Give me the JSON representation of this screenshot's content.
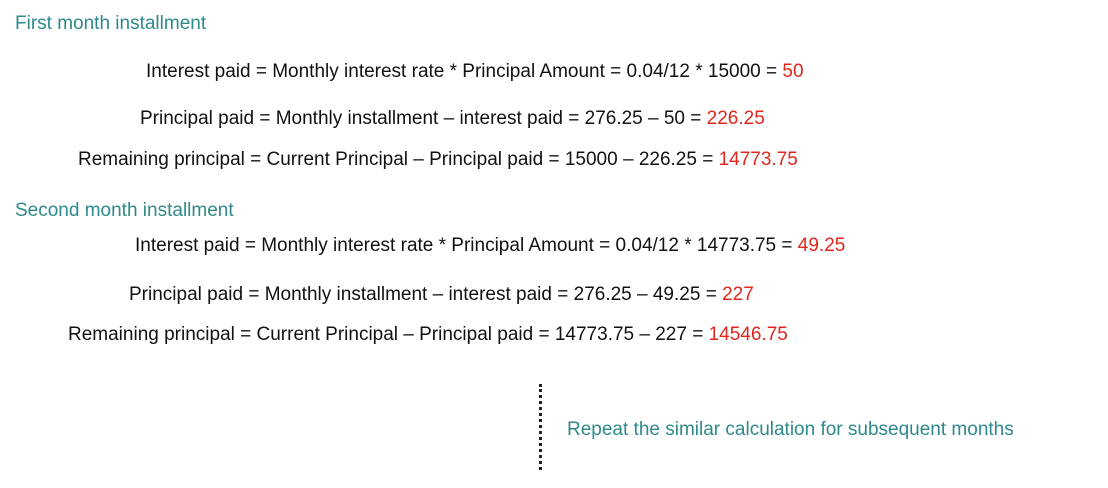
{
  "first_month": {
    "title": "First month installment",
    "interest": {
      "text": "Interest paid = Monthly interest rate * Principal Amount = 0.04/12 * 15000 = ",
      "result": "50"
    },
    "principal": {
      "text": "Principal paid = Monthly installment – interest paid = 276.25 – 50 = ",
      "result": "226.25"
    },
    "remaining": {
      "text": "Remaining principal = Current Principal – Principal paid = 15000 – 226.25 = ",
      "result": "14773.75"
    }
  },
  "second_month": {
    "title": "Second month installment",
    "interest": {
      "text": "Interest paid = Monthly interest rate * Principal Amount = 0.04/12 * 14773.75 = ",
      "result": "49.25"
    },
    "principal": {
      "text": "Principal paid = Monthly installment – interest paid = 276.25 – 49.25 = ",
      "result": "227"
    },
    "remaining": {
      "text": "Remaining principal = Current Principal – Principal paid = 14773.75 – 227 = ",
      "result": "14546.75"
    }
  },
  "note": "Repeat the similar calculation for subsequent months",
  "colors": {
    "heading": "#2e8a8a",
    "result": "#e0261e",
    "text": "#111111"
  }
}
